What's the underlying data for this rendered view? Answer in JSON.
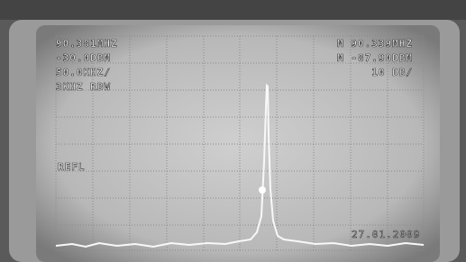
{
  "screen": {
    "readouts_left": [
      "90.381MHZ",
      "-30.0DBM",
      "50.0KHZ/",
      "3KHZ RBW"
    ],
    "readouts_right": [
      "M 90.339MHZ",
      "M -87.90DBM",
      "10 DB/"
    ],
    "reference_label": "REFL",
    "date": "27.01.2009"
  }
}
